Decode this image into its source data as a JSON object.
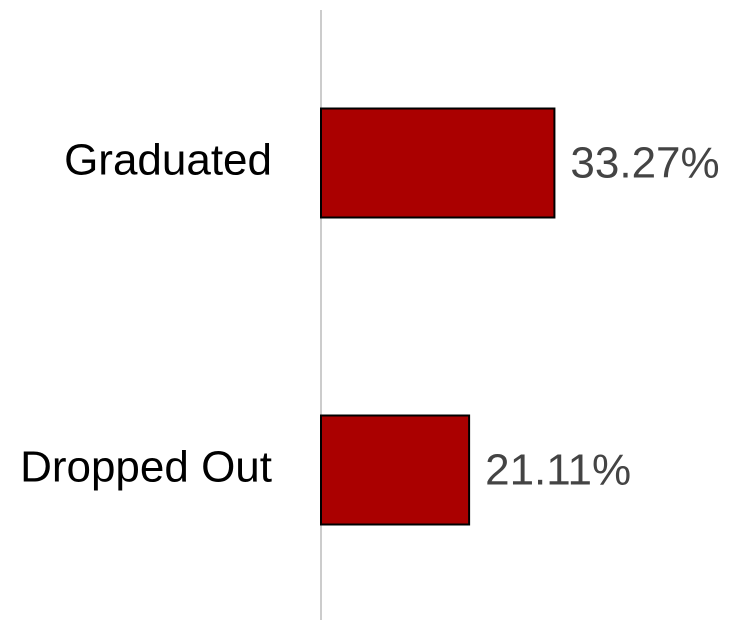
{
  "chart_data": {
    "type": "hbar",
    "categories": [
      "Graduated",
      "Dropped Out"
    ],
    "values": [
      33.27,
      21.11
    ],
    "value_labels": [
      "33.27%",
      "21.11%"
    ],
    "color": "#aa0000",
    "xlim": [
      0,
      62
    ]
  }
}
